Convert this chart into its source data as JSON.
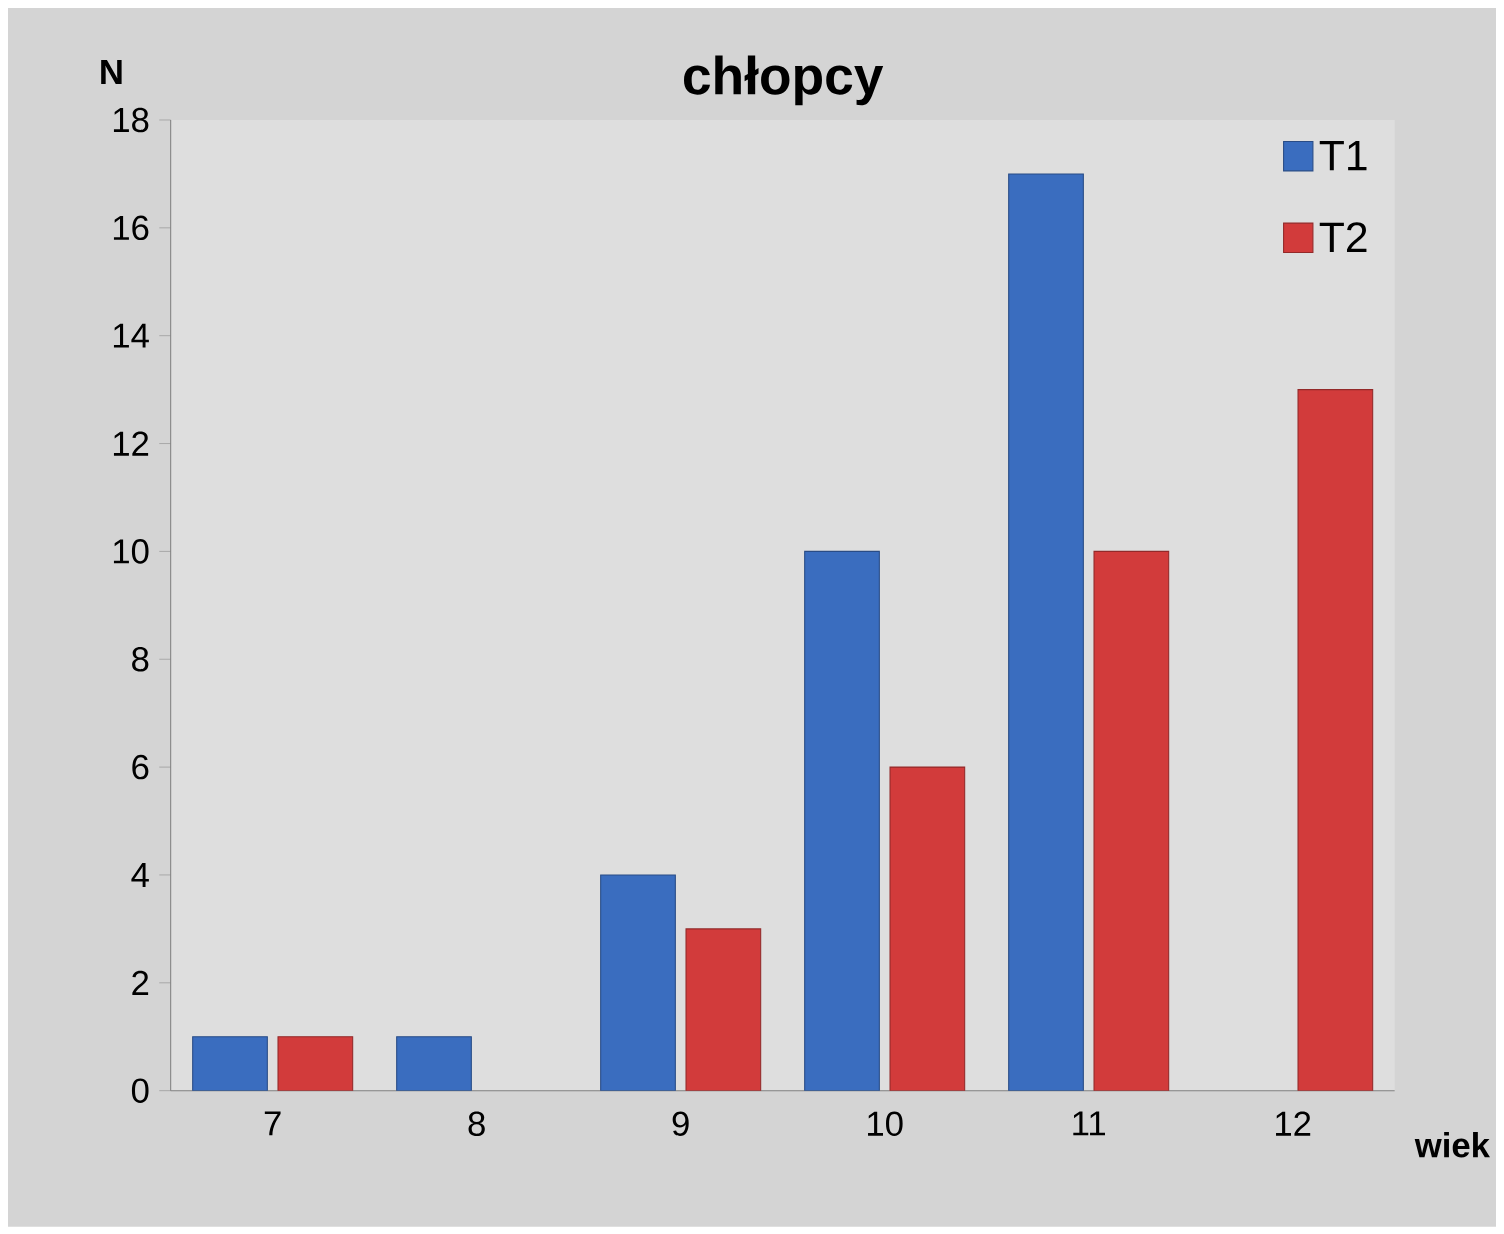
{
  "chart_data": {
    "type": "bar",
    "title": "chłopcy",
    "xlabel": "wiek",
    "ylabel": "N",
    "categories": [
      "7",
      "8",
      "9",
      "10",
      "11",
      "12"
    ],
    "series": [
      {
        "name": "T1",
        "color": "#3a6dbf",
        "values": [
          1,
          1,
          4,
          10,
          17,
          null
        ]
      },
      {
        "name": "T2",
        "color": "#d23b3b",
        "values": [
          1,
          null,
          3,
          6,
          10,
          13
        ]
      }
    ],
    "ylim": [
      0,
      18
    ],
    "yticks": [
      0,
      2,
      4,
      6,
      8,
      10,
      12,
      14,
      16,
      18
    ],
    "grid": false,
    "legend": "top right"
  }
}
